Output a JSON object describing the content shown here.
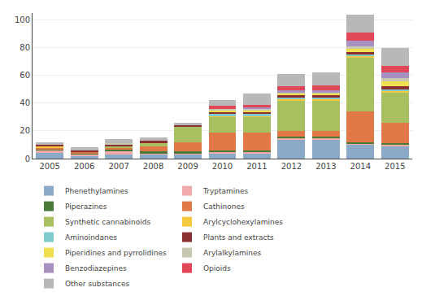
{
  "chart_data": {
    "type": "bar",
    "stacked": true,
    "categories": [
      "2005",
      "2006",
      "2007",
      "2008",
      "2009",
      "2010",
      "2011",
      "2012",
      "2013",
      "2014",
      "2015"
    ],
    "series": [
      {
        "name": "Phenethylamines",
        "color": "#8BAAC8",
        "values": [
          4,
          2,
          3,
          3,
          3,
          4,
          4,
          14,
          14,
          10,
          9
        ]
      },
      {
        "name": "Tryptamines",
        "color": "#F0AAAA",
        "values": [
          2,
          1,
          2,
          1,
          1,
          1,
          1,
          1,
          1,
          1,
          1
        ]
      },
      {
        "name": "Piperazines",
        "color": "#4A7A3A",
        "values": [
          1,
          1,
          2,
          1,
          1,
          1,
          1,
          1,
          1,
          1,
          1
        ]
      },
      {
        "name": "Cathinones",
        "color": "#E07848",
        "values": [
          1,
          1,
          1,
          4,
          7,
          13,
          13,
          4,
          4,
          22,
          15
        ]
      },
      {
        "name": "Synthetic cannabinoids",
        "color": "#A8C060",
        "values": [
          0,
          0,
          1,
          2,
          11,
          11,
          11,
          22,
          22,
          39,
          22
        ]
      },
      {
        "name": "Arylcyclohexylamines",
        "color": "#F5C840",
        "values": [
          1,
          0,
          0,
          0,
          0,
          1,
          1,
          1,
          1,
          1,
          1
        ]
      },
      {
        "name": "Aminoindanes",
        "color": "#80CCCC",
        "values": [
          0,
          0,
          0,
          0,
          0,
          1,
          1,
          1,
          1,
          1,
          1
        ]
      },
      {
        "name": "Plants and extracts",
        "color": "#8B3030",
        "values": [
          1,
          1,
          1,
          2,
          1,
          2,
          2,
          2,
          2,
          2,
          2
        ]
      },
      {
        "name": "Piperidines and pyrrolidines",
        "color": "#F0E050",
        "values": [
          0,
          0,
          0,
          0,
          0,
          1,
          1,
          1,
          1,
          2,
          4
        ]
      },
      {
        "name": "Arylalkylamines",
        "color": "#C8C8B0",
        "values": [
          0,
          0,
          1,
          0,
          0,
          1,
          1,
          1,
          1,
          2,
          2
        ]
      },
      {
        "name": "Benzodiazepines",
        "color": "#A890C0",
        "values": [
          0,
          0,
          0,
          0,
          0,
          0,
          1,
          1,
          1,
          4,
          4
        ]
      },
      {
        "name": "Opioids",
        "color": "#E04858",
        "values": [
          0,
          0,
          0,
          0,
          0,
          2,
          2,
          3,
          4,
          6,
          5
        ]
      },
      {
        "name": "Other substances",
        "color": "#B8B8B8",
        "values": [
          2,
          2,
          3,
          2,
          2,
          4,
          8,
          9,
          9,
          13,
          13
        ]
      }
    ],
    "ylim": [
      0,
      105
    ],
    "yticks": [
      0,
      20,
      40,
      60,
      80,
      100
    ],
    "grid": true,
    "legend": "bottom"
  }
}
